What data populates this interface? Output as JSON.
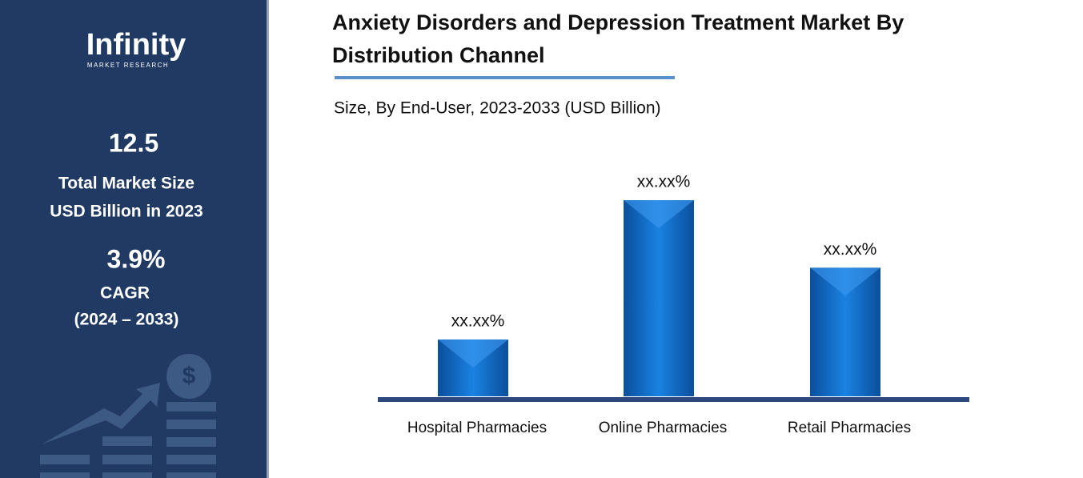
{
  "brand": {
    "name": "Infinity",
    "tagline": "MARKET RESEARCH"
  },
  "sidebar": {
    "market_size": "12.5",
    "market_size_label": [
      "Total Market Size",
      "USD Billion in 2023"
    ],
    "cagr": "3.9%",
    "cagr_label": [
      "CAGR",
      "(2024 – 2033)"
    ]
  },
  "chart_data": {
    "type": "bar",
    "title": [
      "Anxiety Disorders and Depression Treatment Market By",
      "Distribution Channel"
    ],
    "subtitle": "Size, By End-User, 2023-2033 (USD Billion)",
    "categories": [
      "Hospital Pharmacies",
      "Online Pharmacies",
      "Retail Pharmacies"
    ],
    "values": [
      14.9,
      51.4,
      33.7
    ],
    "value_labels": [
      "xx.xx%",
      "xx.xx%",
      "xx.xx%"
    ],
    "color": "#0f6fcf"
  }
}
